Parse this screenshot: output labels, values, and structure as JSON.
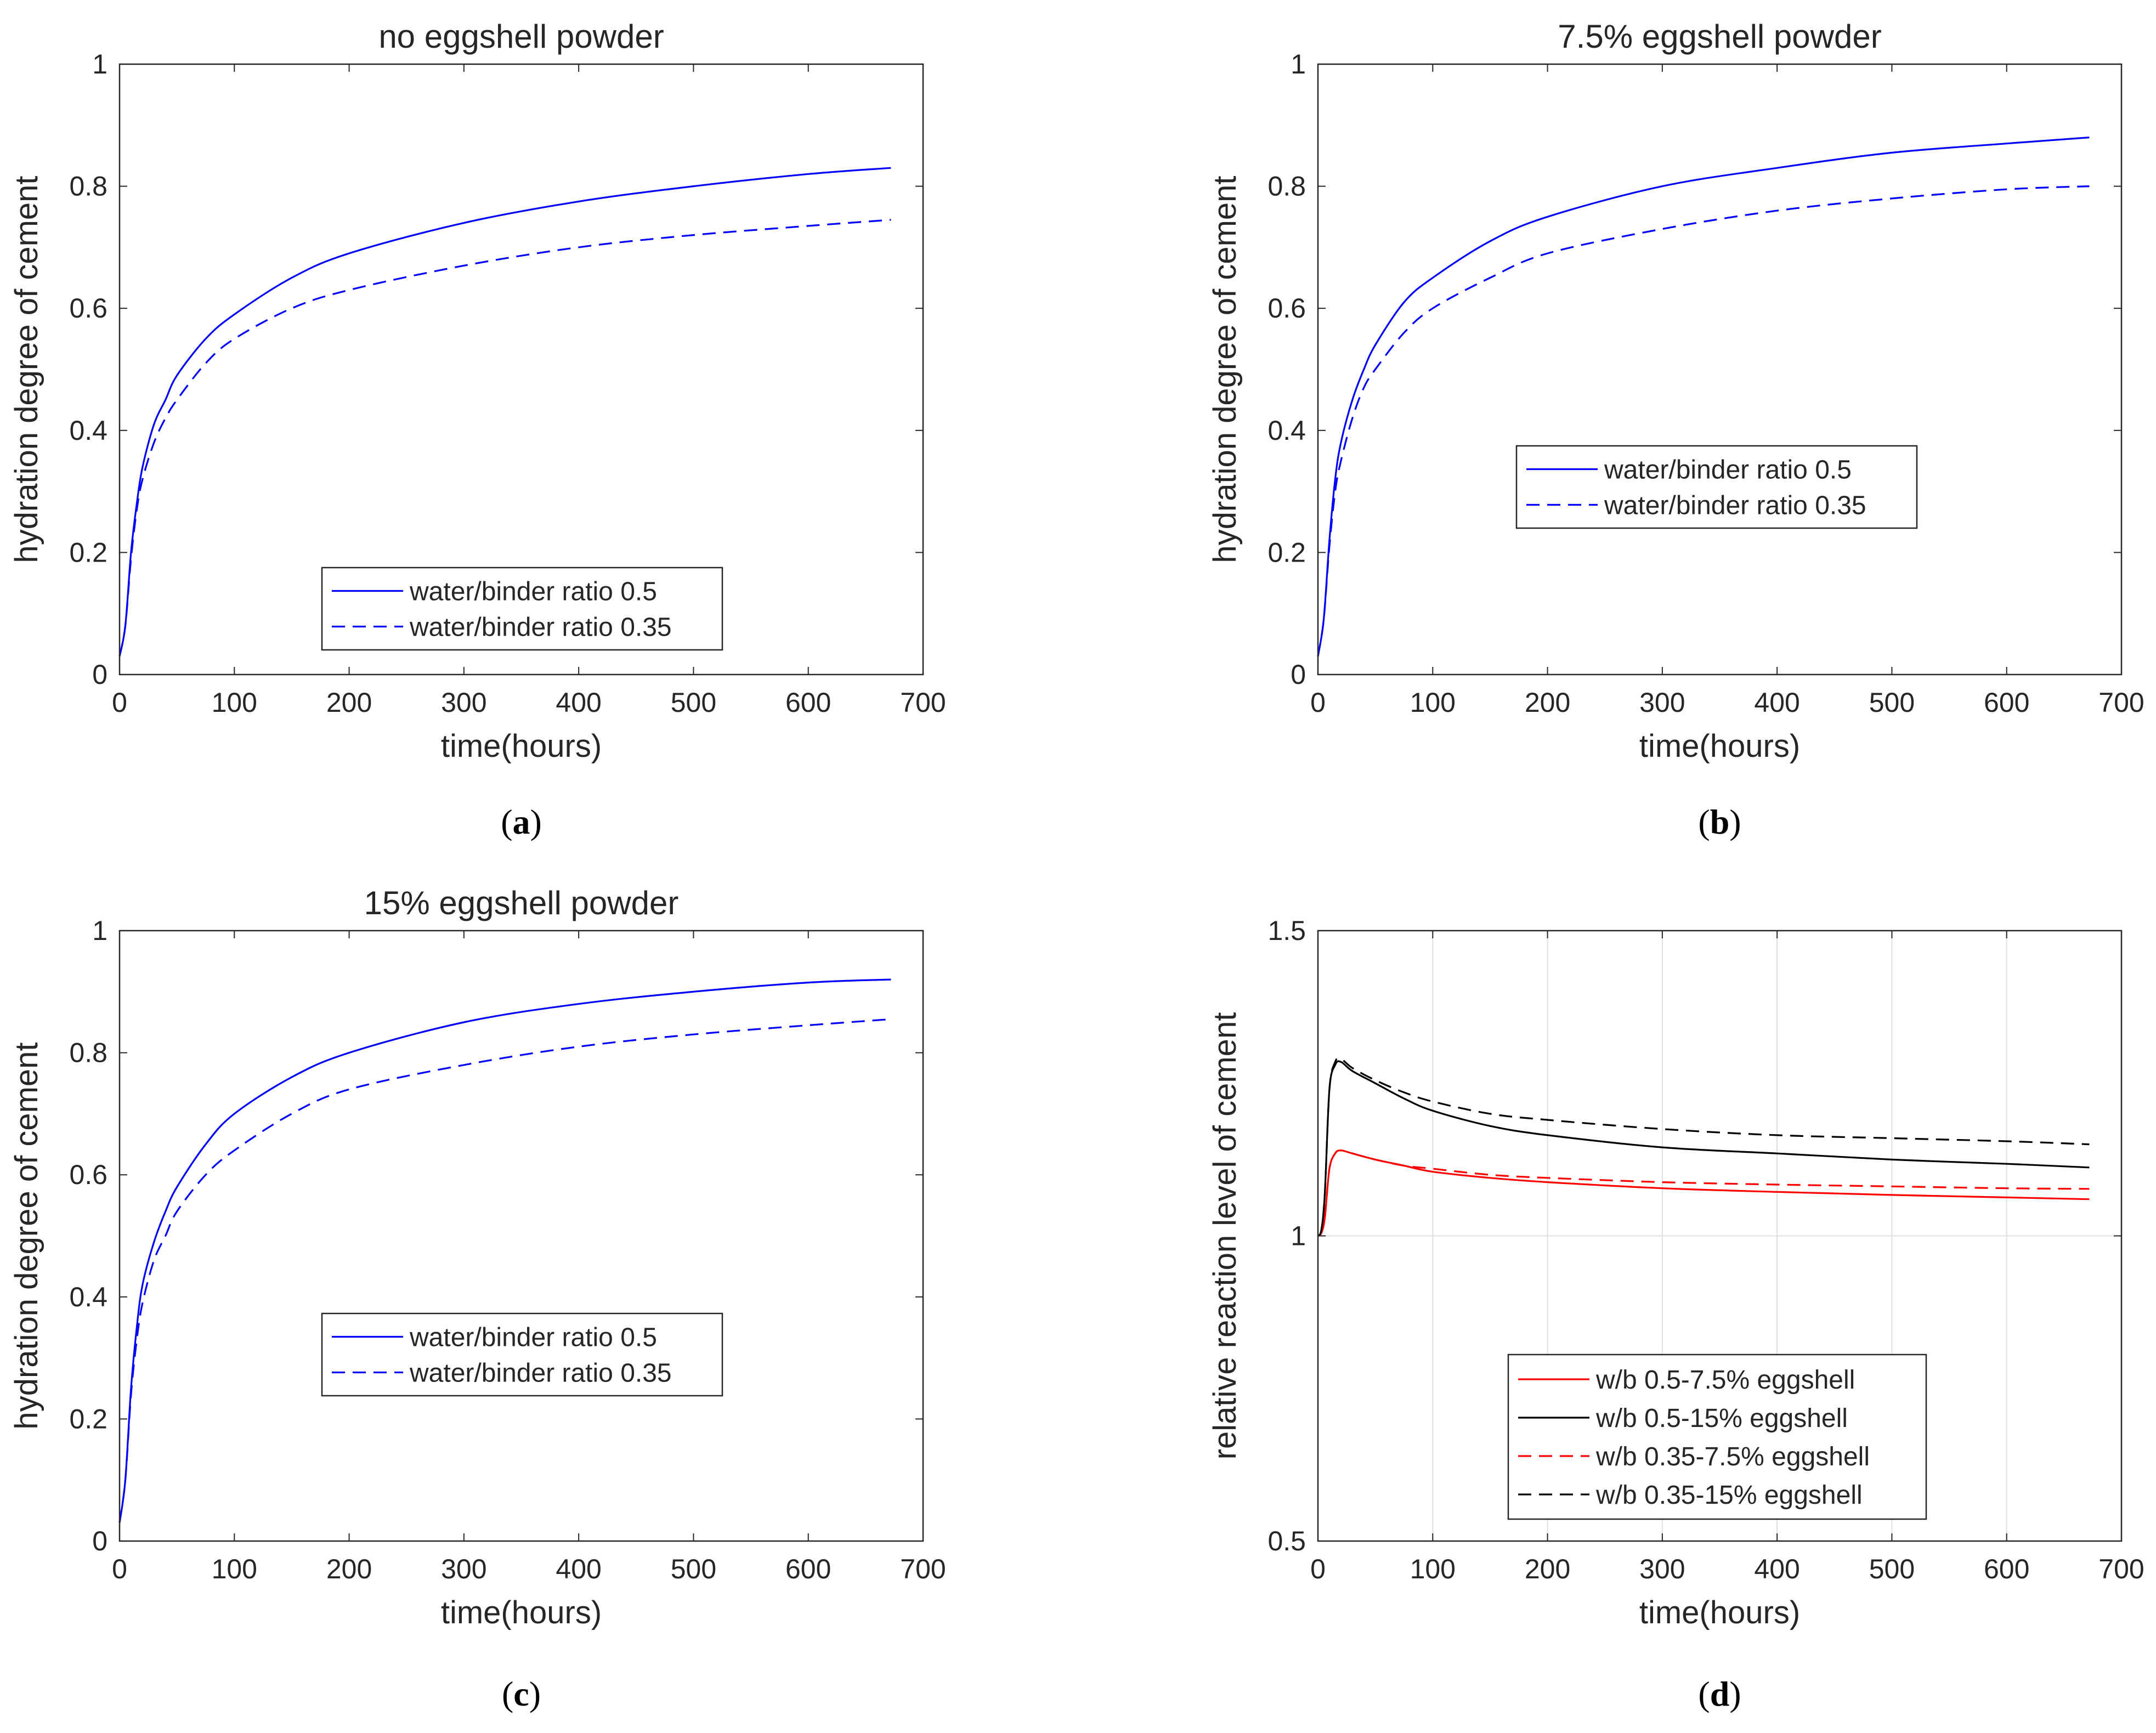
{
  "chart_data": [
    {
      "type": "line",
      "panel_label": "a",
      "title": "no eggshell powder",
      "xlabel": "time(hours)",
      "ylabel": "hydration degree of cement",
      "xlim": [
        0,
        700
      ],
      "ylim": [
        0,
        1
      ],
      "xticks": [
        0,
        100,
        200,
        300,
        400,
        500,
        600,
        700
      ],
      "yticks": [
        0,
        0.2,
        0.4,
        0.6,
        0.8,
        1
      ],
      "grid": false,
      "legend_position": "bottom-center",
      "series": [
        {
          "name": "water/binder ratio 0.5",
          "color": "#0000ff",
          "style": "solid",
          "x": [
            0,
            5,
            10,
            15,
            20,
            30,
            40,
            50,
            75,
            100,
            150,
            200,
            300,
            400,
            500,
            600,
            672
          ],
          "y": [
            0.03,
            0.08,
            0.2,
            0.28,
            0.34,
            0.41,
            0.45,
            0.49,
            0.55,
            0.59,
            0.65,
            0.69,
            0.74,
            0.775,
            0.8,
            0.82,
            0.83
          ]
        },
        {
          "name": "water/binder ratio 0.35",
          "color": "#0000ff",
          "style": "dashed",
          "x": [
            0,
            5,
            10,
            15,
            20,
            30,
            40,
            50,
            75,
            100,
            150,
            200,
            300,
            400,
            500,
            600,
            672
          ],
          "y": [
            0.03,
            0.08,
            0.19,
            0.27,
            0.32,
            0.38,
            0.42,
            0.45,
            0.51,
            0.55,
            0.6,
            0.63,
            0.67,
            0.7,
            0.72,
            0.735,
            0.745
          ]
        }
      ]
    },
    {
      "type": "line",
      "panel_label": "b",
      "title": "7.5% eggshell powder",
      "xlabel": "time(hours)",
      "ylabel": "hydration degree of cement",
      "xlim": [
        0,
        700
      ],
      "ylim": [
        0,
        1
      ],
      "xticks": [
        0,
        100,
        200,
        300,
        400,
        500,
        600,
        700
      ],
      "yticks": [
        0,
        0.2,
        0.4,
        0.6,
        0.8,
        1
      ],
      "grid": false,
      "legend_position": "middle-center",
      "series": [
        {
          "name": "water/binder ratio 0.5",
          "color": "#0000ff",
          "style": "solid",
          "x": [
            0,
            5,
            10,
            15,
            20,
            30,
            40,
            50,
            75,
            100,
            150,
            200,
            300,
            400,
            500,
            600,
            672
          ],
          "y": [
            0.03,
            0.09,
            0.22,
            0.32,
            0.38,
            0.45,
            0.5,
            0.54,
            0.61,
            0.65,
            0.71,
            0.75,
            0.8,
            0.83,
            0.855,
            0.87,
            0.88
          ]
        },
        {
          "name": "water/binder ratio 0.35",
          "color": "#0000ff",
          "style": "dashed",
          "x": [
            0,
            5,
            10,
            15,
            20,
            30,
            40,
            50,
            75,
            100,
            150,
            200,
            300,
            400,
            500,
            600,
            672
          ],
          "y": [
            0.03,
            0.09,
            0.21,
            0.3,
            0.35,
            0.42,
            0.47,
            0.5,
            0.56,
            0.6,
            0.65,
            0.69,
            0.73,
            0.76,
            0.78,
            0.795,
            0.8
          ]
        }
      ]
    },
    {
      "type": "line",
      "panel_label": "c",
      "title": "15% eggshell powder",
      "xlabel": "time(hours)",
      "ylabel": "hydration degree of cement",
      "xlim": [
        0,
        700
      ],
      "ylim": [
        0,
        1
      ],
      "xticks": [
        0,
        100,
        200,
        300,
        400,
        500,
        600,
        700
      ],
      "yticks": [
        0,
        0.2,
        0.4,
        0.6,
        0.8,
        1
      ],
      "grid": false,
      "legend_position": "middle-center",
      "series": [
        {
          "name": "water/binder ratio 0.5",
          "color": "#0000ff",
          "style": "solid",
          "x": [
            0,
            5,
            10,
            15,
            20,
            30,
            40,
            50,
            75,
            100,
            150,
            200,
            300,
            400,
            500,
            600,
            672
          ],
          "y": [
            0.03,
            0.1,
            0.25,
            0.35,
            0.42,
            0.49,
            0.54,
            0.58,
            0.65,
            0.7,
            0.76,
            0.8,
            0.85,
            0.88,
            0.9,
            0.915,
            0.92
          ]
        },
        {
          "name": "water/binder ratio 0.35",
          "color": "#0000ff",
          "style": "dashed",
          "x": [
            0,
            5,
            10,
            15,
            20,
            30,
            40,
            50,
            75,
            100,
            150,
            200,
            300,
            400,
            500,
            600,
            672
          ],
          "y": [
            0.03,
            0.1,
            0.24,
            0.33,
            0.39,
            0.46,
            0.5,
            0.54,
            0.6,
            0.64,
            0.7,
            0.74,
            0.78,
            0.81,
            0.83,
            0.845,
            0.855
          ]
        }
      ]
    },
    {
      "type": "line",
      "panel_label": "d",
      "title": "",
      "xlabel": "time(hours)",
      "ylabel": "relative reaction level of cement",
      "xlim": [
        0,
        700
      ],
      "ylim": [
        0.5,
        1.5
      ],
      "xticks": [
        0,
        100,
        200,
        300,
        400,
        500,
        600,
        700
      ],
      "yticks": [
        0.5,
        1,
        1.5
      ],
      "grid": true,
      "legend_position": "bottom-center",
      "series": [
        {
          "name": "w/b 0.5-7.5% eggshell",
          "color": "#ff0000",
          "style": "solid",
          "x": [
            0,
            3,
            6,
            10,
            15,
            20,
            30,
            50,
            75,
            100,
            150,
            200,
            300,
            400,
            500,
            600,
            672
          ],
          "y": [
            1.0,
            1.005,
            1.03,
            1.11,
            1.135,
            1.14,
            1.135,
            1.125,
            1.115,
            1.105,
            1.095,
            1.088,
            1.078,
            1.072,
            1.067,
            1.063,
            1.06
          ]
        },
        {
          "name": "w/b 0.5-15% eggshell",
          "color": "#000000",
          "style": "solid",
          "x": [
            0,
            3,
            6,
            10,
            15,
            20,
            30,
            50,
            75,
            100,
            150,
            200,
            300,
            400,
            500,
            600,
            672
          ],
          "y": [
            1.0,
            1.01,
            1.07,
            1.24,
            1.28,
            1.285,
            1.27,
            1.25,
            1.225,
            1.205,
            1.18,
            1.165,
            1.145,
            1.135,
            1.125,
            1.118,
            1.112
          ]
        },
        {
          "name": "w/b 0.35-7.5% eggshell",
          "color": "#ff0000",
          "style": "dashed",
          "x": [
            0,
            3,
            6,
            10,
            15,
            20,
            30,
            50,
            75,
            100,
            150,
            200,
            300,
            400,
            500,
            600,
            672
          ],
          "y": [
            1.0,
            1.005,
            1.03,
            1.11,
            1.135,
            1.14,
            1.135,
            1.125,
            1.115,
            1.11,
            1.1,
            1.095,
            1.088,
            1.084,
            1.081,
            1.078,
            1.077
          ]
        },
        {
          "name": "w/b 0.35-15% eggshell",
          "color": "#000000",
          "style": "dashed",
          "x": [
            0,
            3,
            6,
            10,
            15,
            20,
            30,
            50,
            75,
            100,
            150,
            200,
            300,
            400,
            500,
            600,
            672
          ],
          "y": [
            1.0,
            1.01,
            1.07,
            1.24,
            1.285,
            1.29,
            1.275,
            1.255,
            1.235,
            1.22,
            1.2,
            1.19,
            1.175,
            1.165,
            1.16,
            1.155,
            1.15
          ]
        }
      ]
    }
  ]
}
